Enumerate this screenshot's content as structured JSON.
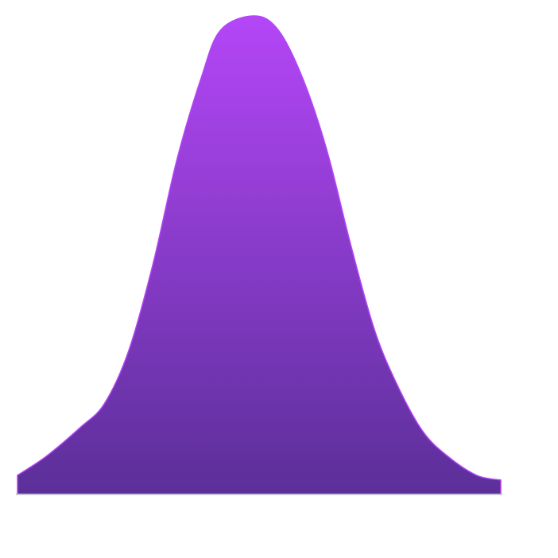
{
  "chart_data": {
    "type": "area",
    "x": [
      0,
      6,
      13,
      18,
      23,
      28,
      33,
      38,
      42,
      49,
      54,
      59,
      64,
      69,
      74,
      79,
      84,
      89,
      95,
      100
    ],
    "values": [
      4,
      8,
      14,
      19,
      30,
      48,
      70,
      87,
      97,
      100,
      97,
      87,
      72,
      52,
      34,
      22,
      13,
      8,
      4,
      3
    ],
    "colors": [
      "#b446f7",
      "#5b2f99"
    ],
    "xlim": [
      0,
      100
    ],
    "ylim": [
      0,
      100
    ],
    "grid": false
  }
}
